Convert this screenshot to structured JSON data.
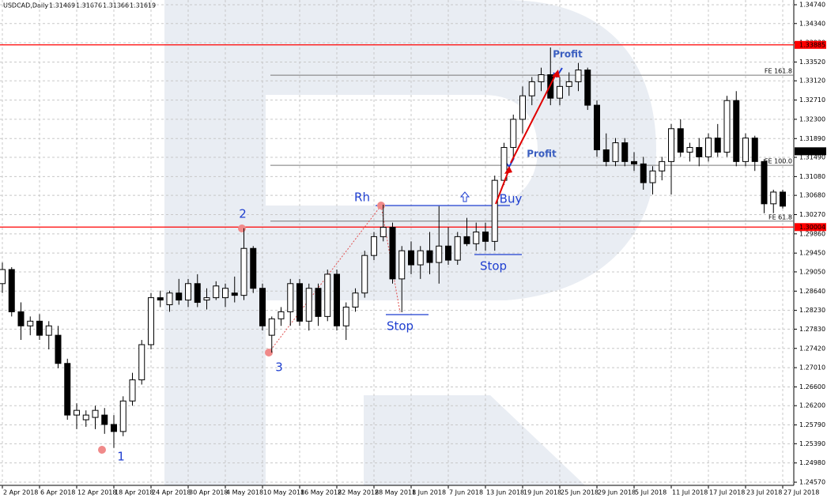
{
  "chart_data": {
    "type": "candlestick",
    "title": "USDCAD,Daily",
    "quote": [
      1.31469,
      1.31676,
      1.31366,
      1.31619
    ],
    "categories": [
      "2 Apr 2018",
      null,
      null,
      null,
      "6 Apr 2018",
      null,
      null,
      null,
      "12 Apr 2018",
      null,
      null,
      null,
      "18 Apr 2018",
      null,
      null,
      null,
      "24 Apr 2018",
      null,
      null,
      null,
      "30 Apr 2018",
      null,
      null,
      null,
      "4 May 2018",
      null,
      null,
      null,
      "10 May 2018",
      null,
      null,
      null,
      "16 May 2018",
      null,
      null,
      null,
      "22 May 2018",
      null,
      null,
      null,
      "28 May 2018",
      null,
      null,
      null,
      "1 Jun 2018",
      null,
      null,
      null,
      "7 Jun 2018",
      null,
      null,
      null,
      "13 Jun 2018",
      null,
      null,
      null,
      "19 Jun 2018",
      null,
      null,
      null,
      "25 Jun 2018",
      null,
      null,
      null,
      "29 Jun 2018",
      null,
      null,
      null,
      "5 Jul 2018",
      null,
      null,
      null,
      "11 Jul 2018",
      null,
      null,
      null,
      "17 Jul 2018",
      null,
      null,
      null,
      "23 Jul 2018",
      null,
      null,
      null,
      "27 Jul 2018"
    ],
    "ohlc": [
      [
        1.288,
        1.2925,
        1.286,
        1.291
      ],
      [
        1.291,
        1.2915,
        1.281,
        1.282
      ],
      [
        1.282,
        1.284,
        1.276,
        1.279
      ],
      [
        1.279,
        1.281,
        1.277,
        1.28
      ],
      [
        1.28,
        1.2815,
        1.276,
        1.277
      ],
      [
        1.277,
        1.28,
        1.274,
        1.279
      ],
      [
        1.277,
        1.279,
        1.27,
        1.271
      ],
      [
        1.271,
        1.272,
        1.259,
        1.26
      ],
      [
        1.26,
        1.2625,
        1.257,
        1.261
      ],
      [
        1.259,
        1.261,
        1.2575,
        1.26
      ],
      [
        1.2595,
        1.262,
        1.257,
        1.261
      ],
      [
        1.26,
        1.2615,
        1.256,
        1.258
      ],
      [
        1.258,
        1.26,
        1.253,
        1.2565
      ],
      [
        1.2565,
        1.264,
        1.2555,
        1.263
      ],
      [
        1.263,
        1.269,
        1.262,
        1.2675
      ],
      [
        1.2675,
        1.276,
        1.2665,
        1.275
      ],
      [
        1.275,
        1.286,
        1.274,
        1.285
      ],
      [
        1.285,
        1.2865,
        1.283,
        1.2845
      ],
      [
        1.2835,
        1.2865,
        1.282,
        1.286
      ],
      [
        1.286,
        1.289,
        1.2835,
        1.2845
      ],
      [
        1.2845,
        1.289,
        1.283,
        1.288
      ],
      [
        1.288,
        1.29,
        1.283,
        1.284
      ],
      [
        1.2845,
        1.287,
        1.2825,
        1.285
      ],
      [
        1.285,
        1.2885,
        1.2845,
        1.2875
      ],
      [
        1.285,
        1.288,
        1.283,
        1.287
      ],
      [
        1.286,
        1.2895,
        1.284,
        1.2855
      ],
      [
        1.2855,
        1.2998,
        1.2845,
        1.2955
      ],
      [
        1.2955,
        1.296,
        1.286,
        1.287
      ],
      [
        1.287,
        1.288,
        1.278,
        1.279
      ],
      [
        1.277,
        1.281,
        1.2733,
        1.2805
      ],
      [
        1.2805,
        1.283,
        1.279,
        1.282
      ],
      [
        1.282,
        1.289,
        1.279,
        1.288
      ],
      [
        1.288,
        1.289,
        1.279,
        1.28
      ],
      [
        1.28,
        1.288,
        1.278,
        1.287
      ],
      [
        1.287,
        1.288,
        1.279,
        1.281
      ],
      [
        1.281,
        1.291,
        1.28,
        1.29
      ],
      [
        1.29,
        1.291,
        1.278,
        1.279
      ],
      [
        1.279,
        1.284,
        1.276,
        1.283
      ],
      [
        1.283,
        1.287,
        1.282,
        1.286
      ],
      [
        1.286,
        1.295,
        1.285,
        1.294
      ],
      [
        1.294,
        1.299,
        1.293,
        1.298
      ],
      [
        1.298,
        1.3048,
        1.297,
        1.3
      ],
      [
        1.3,
        1.301,
        1.288,
        1.289
      ],
      [
        1.289,
        1.296,
        1.2819,
        1.295
      ],
      [
        1.295,
        1.297,
        1.29,
        1.292
      ],
      [
        1.292,
        1.296,
        1.289,
        1.295
      ],
      [
        1.295,
        1.299,
        1.29,
        1.2925
      ],
      [
        1.2925,
        1.3045,
        1.288,
        1.296
      ],
      [
        1.296,
        1.3,
        1.292,
        1.293
      ],
      [
        1.293,
        1.299,
        1.292,
        1.298
      ],
      [
        1.298,
        1.302,
        1.296,
        1.2965
      ],
      [
        1.2965,
        1.301,
        1.295,
        1.299
      ],
      [
        1.299,
        1.301,
        1.295,
        1.297
      ],
      [
        1.297,
        1.311,
        1.295,
        1.31
      ],
      [
        1.31,
        1.318,
        1.309,
        1.317
      ],
      [
        1.317,
        1.324,
        1.315,
        1.323
      ],
      [
        1.323,
        1.33,
        1.32,
        1.328
      ],
      [
        1.328,
        1.332,
        1.326,
        1.331
      ],
      [
        1.331,
        1.334,
        1.329,
        1.3325
      ],
      [
        1.3325,
        1.3383,
        1.326,
        1.3275
      ],
      [
        1.3275,
        1.332,
        1.326,
        1.33
      ],
      [
        1.33,
        1.333,
        1.328,
        1.331
      ],
      [
        1.331,
        1.335,
        1.329,
        1.3335
      ],
      [
        1.3335,
        1.334,
        1.325,
        1.326
      ],
      [
        1.326,
        1.327,
        1.315,
        1.3165
      ],
      [
        1.3165,
        1.32,
        1.313,
        1.314
      ],
      [
        1.314,
        1.319,
        1.313,
        1.318
      ],
      [
        1.318,
        1.319,
        1.313,
        1.314
      ],
      [
        1.314,
        1.316,
        1.312,
        1.3135
      ],
      [
        1.3135,
        1.315,
        1.308,
        1.3095
      ],
      [
        1.3095,
        1.313,
        1.307,
        1.312
      ],
      [
        1.312,
        1.315,
        1.31,
        1.314
      ],
      [
        1.314,
        1.322,
        1.307,
        1.321
      ],
      [
        1.321,
        1.323,
        1.315,
        1.316
      ],
      [
        1.316,
        1.318,
        1.314,
        1.317
      ],
      [
        1.317,
        1.319,
        1.313,
        1.315
      ],
      [
        1.315,
        1.32,
        1.314,
        1.319
      ],
      [
        1.319,
        1.322,
        1.315,
        1.316
      ],
      [
        1.316,
        1.328,
        1.315,
        1.327
      ],
      [
        1.327,
        1.329,
        1.313,
        1.314
      ],
      [
        1.314,
        1.32,
        1.313,
        1.319
      ],
      [
        1.319,
        1.3195,
        1.312,
        1.314
      ],
      [
        1.314,
        1.3145,
        1.303,
        1.305
      ],
      [
        1.305,
        1.308,
        1.303,
        1.3075
      ],
      [
        1.3075,
        1.308,
        1.304,
        1.3045
      ]
    ],
    "ylim": [
      1.24503,
      1.34841
    ],
    "yticks": [
      {
        "value": 1.2457,
        "label": "1.24570"
      },
      {
        "value": 1.2498,
        "label": "1.24980"
      },
      {
        "value": 1.2539,
        "label": "1.25390"
      },
      {
        "value": 1.2579,
        "label": "1.25790"
      },
      {
        "value": 1.262,
        "label": "1.26200"
      },
      {
        "value": 1.266,
        "label": "1.26600"
      },
      {
        "value": 1.2701,
        "label": "1.27010"
      },
      {
        "value": 1.2742,
        "label": "1.27420"
      },
      {
        "value": 1.2783,
        "label": "1.27830"
      },
      {
        "value": 1.2823,
        "label": "1.28230"
      },
      {
        "value": 1.2864,
        "label": "1.28640"
      },
      {
        "value": 1.2905,
        "label": "1.29050"
      },
      {
        "value": 1.2945,
        "label": "1.29450"
      },
      {
        "value": 1.2986,
        "label": "1.29860"
      },
      {
        "value": 1.3027,
        "label": "1.30270"
      },
      {
        "value": 1.3068,
        "label": "1.30680"
      },
      {
        "value": 1.3108,
        "label": "1.31080"
      },
      {
        "value": 1.3149,
        "label": "1.31490"
      },
      {
        "value": 1.3189,
        "label": "1.31890"
      },
      {
        "value": 1.323,
        "label": "1.32300"
      },
      {
        "value": 1.3271,
        "label": "1.32710"
      },
      {
        "value": 1.3312,
        "label": "1.33120"
      },
      {
        "value": 1.3352,
        "label": "1.33520"
      },
      {
        "value": 1.3393,
        "label": "1.33930"
      },
      {
        "value": 1.3434,
        "label": "1.34340"
      },
      {
        "value": 1.3474,
        "label": "1.34740"
      }
    ],
    "grid": true,
    "up_color": "#ffffff",
    "down_color": "#000000",
    "levels": [
      {
        "value": 1.33885,
        "color": "#ff0000"
      },
      {
        "value": 1.30004,
        "color": "#ff0000"
      },
      {
        "value": 1.31619,
        "color": "#000000"
      }
    ],
    "fibo": [
      {
        "label": "FE 161.8",
        "value": 1.3324
      },
      {
        "label": "FE 100.0",
        "value": 1.3132
      },
      {
        "label": "FE 61.8",
        "value": 1.3013
      }
    ],
    "annotations": [
      "1",
      "2",
      "3",
      "Rh",
      "Buy",
      "Stop",
      "Stop",
      "Profit",
      "Profit"
    ]
  }
}
